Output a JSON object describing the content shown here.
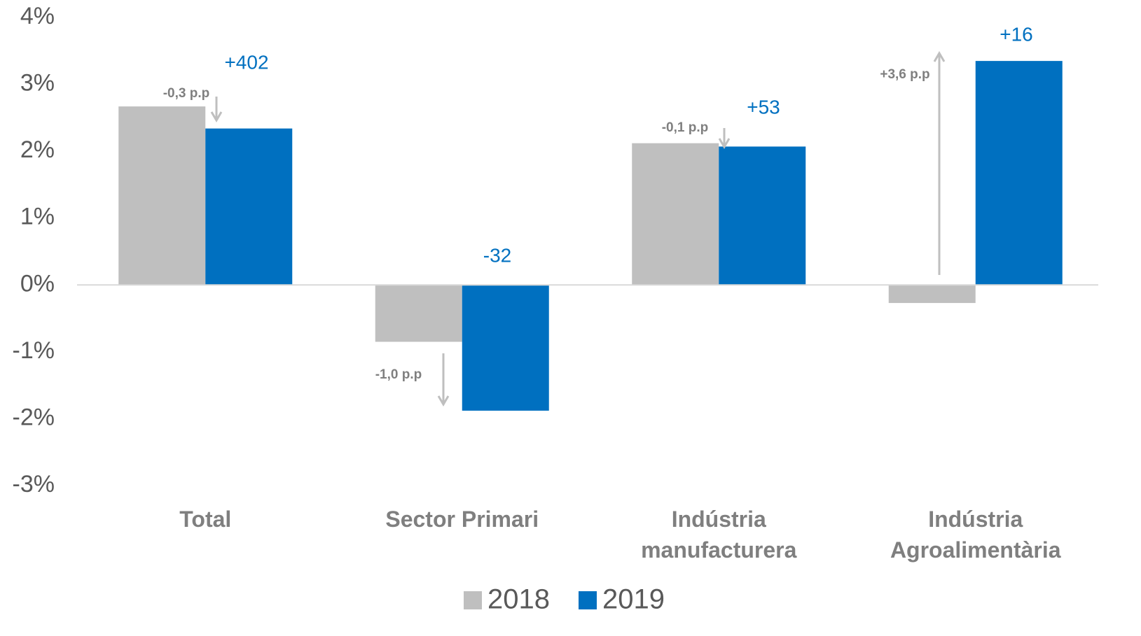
{
  "chart_data": {
    "type": "bar",
    "categories": [
      "Total",
      "Sector Primari",
      "Indústria\nmanufacturera",
      "Indústria\nAgroalimentària"
    ],
    "series": [
      {
        "name": "2018",
        "color": "#bfbfbf",
        "values": [
          2.67,
          -0.85,
          2.12,
          -0.27
        ]
      },
      {
        "name": "2019",
        "color": "#0070c0",
        "values": [
          2.34,
          -1.88,
          2.07,
          3.35
        ]
      }
    ],
    "ylim": [
      -3,
      4
    ],
    "yticks": [
      {
        "value": -3,
        "label": "-3%"
      },
      {
        "value": -2,
        "label": "-2%"
      },
      {
        "value": -1,
        "label": "-1%"
      },
      {
        "value": 0,
        "label": "0%"
      },
      {
        "value": 1,
        "label": "1%"
      },
      {
        "value": 2,
        "label": "2%"
      },
      {
        "value": 3,
        "label": "3%"
      },
      {
        "value": 4,
        "label": "4%"
      }
    ],
    "grid": false,
    "legend": "bottom",
    "annotations": [
      "+402",
      "-32",
      "+53",
      "+16",
      "-0,3 p.p",
      "-1,0 p.p",
      "-0,1 p.p",
      "+3,6 p.p"
    ]
  }
}
